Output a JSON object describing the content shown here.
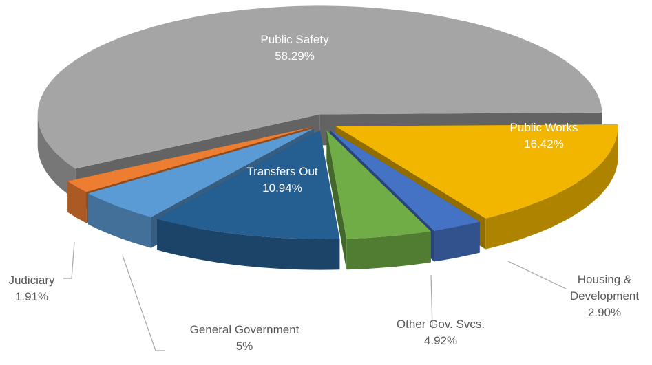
{
  "chart_data": {
    "type": "pie",
    "categories": [
      "Public Safety",
      "Public Works",
      "Housing & Development",
      "Other Gov. Svcs.",
      "Transfers Out",
      "General Government",
      "Judiciary"
    ],
    "values": [
      58.29,
      16.42,
      2.9,
      4.92,
      10.94,
      5,
      1.91
    ],
    "value_labels": [
      "58.29%",
      "16.42%",
      "2.90%",
      "4.92%",
      "10.94%",
      "5%",
      "1.91%"
    ],
    "colors": [
      "#a5a5a5",
      "#f2b600",
      "#4472c4",
      "#70ad47",
      "#255e91",
      "#5b9bd5",
      "#ed7d31"
    ]
  }
}
